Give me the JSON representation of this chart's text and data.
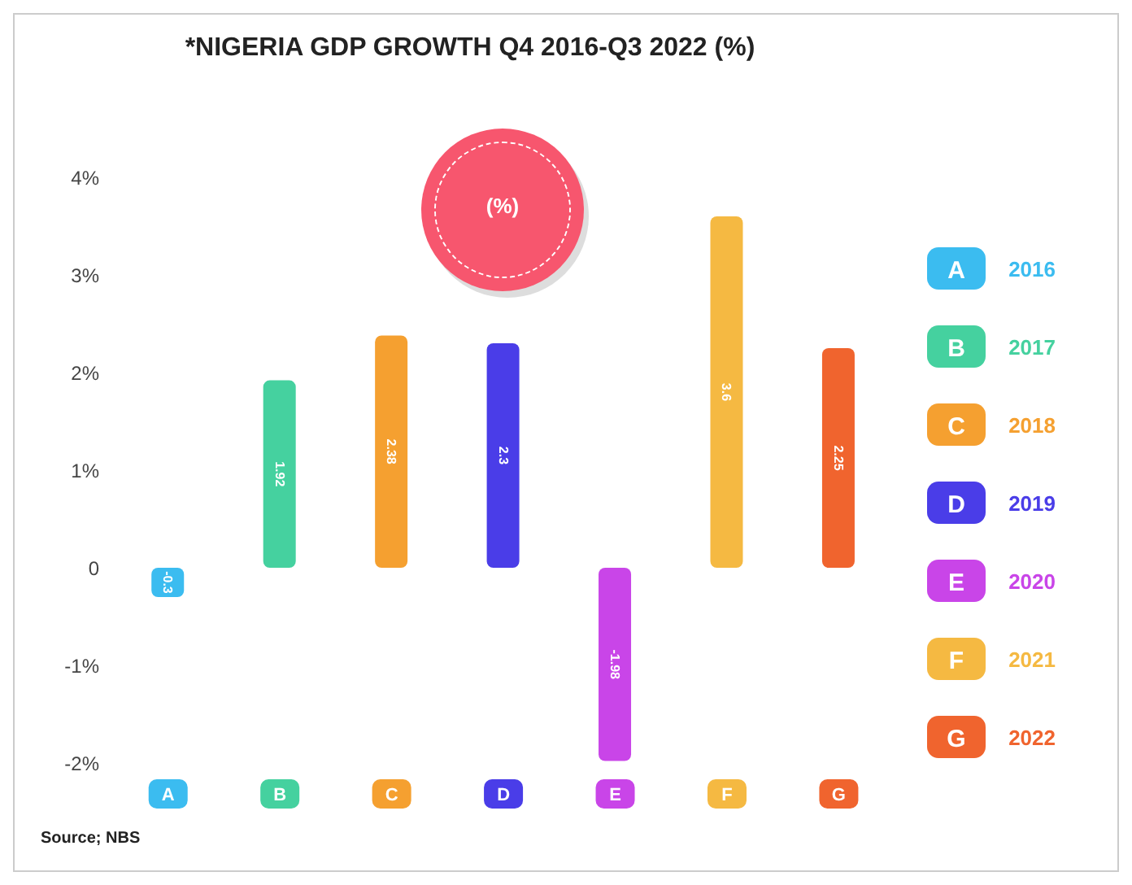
{
  "chart_data": {
    "type": "bar",
    "title": "*NIGERIA GDP GROWTH Q4 2016-Q3 2022 (%)",
    "categories": [
      "A",
      "B",
      "C",
      "D",
      "E",
      "F",
      "G"
    ],
    "stacked": true,
    "series": [
      {
        "name": "2016",
        "color": "#3bbcf0",
        "values": [
          -0.3,
          null,
          null,
          null,
          null,
          null,
          null
        ],
        "value_labels": [
          "-0.3",
          null,
          null,
          null,
          null,
          null,
          null
        ]
      },
      {
        "name": "2017",
        "color": "#45d19f",
        "values": [
          null,
          1.92,
          null,
          null,
          null,
          null,
          null
        ],
        "value_labels": [
          null,
          "1.92",
          null,
          null,
          null,
          null,
          null
        ]
      },
      {
        "name": "2018",
        "color": "#f5a030",
        "values": [
          null,
          null,
          2.38,
          null,
          null,
          null,
          null
        ],
        "value_labels": [
          null,
          null,
          "2.38",
          null,
          null,
          null,
          null
        ]
      },
      {
        "name": "2019",
        "color": "#4a3de8",
        "values": [
          null,
          null,
          null,
          2.3,
          null,
          null,
          null
        ],
        "value_labels": [
          null,
          null,
          null,
          "2.3",
          null,
          null,
          null
        ]
      },
      {
        "name": "2020",
        "color": "#c945e8",
        "values": [
          null,
          null,
          null,
          null,
          -1.98,
          null,
          null
        ],
        "value_labels": [
          null,
          null,
          null,
          null,
          "-1.98",
          null,
          null
        ]
      },
      {
        "name": "2021",
        "color": "#f5b942",
        "values": [
          null,
          null,
          null,
          null,
          null,
          3.6,
          null
        ],
        "value_labels": [
          null,
          null,
          null,
          null,
          null,
          "3.6",
          null
        ]
      },
      {
        "name": "2022",
        "color": "#f0642e",
        "values": [
          null,
          null,
          null,
          null,
          null,
          null,
          2.25
        ],
        "value_labels": [
          null,
          null,
          null,
          null,
          null,
          null,
          "2.25"
        ]
      }
    ],
    "ylim": [
      -2,
      4
    ],
    "yticks": [
      {
        "value": -2,
        "label": "-2%"
      },
      {
        "value": -1,
        "label": "-1%"
      },
      {
        "value": 0,
        "label": "0"
      },
      {
        "value": 1,
        "label": "1%"
      },
      {
        "value": 2,
        "label": "2%"
      },
      {
        "value": 3,
        "label": "3%"
      },
      {
        "value": 4,
        "label": "4%"
      }
    ],
    "grid": false,
    "legend": "right",
    "annotations": [
      "(%)",
      "Source; NBS"
    ]
  }
}
